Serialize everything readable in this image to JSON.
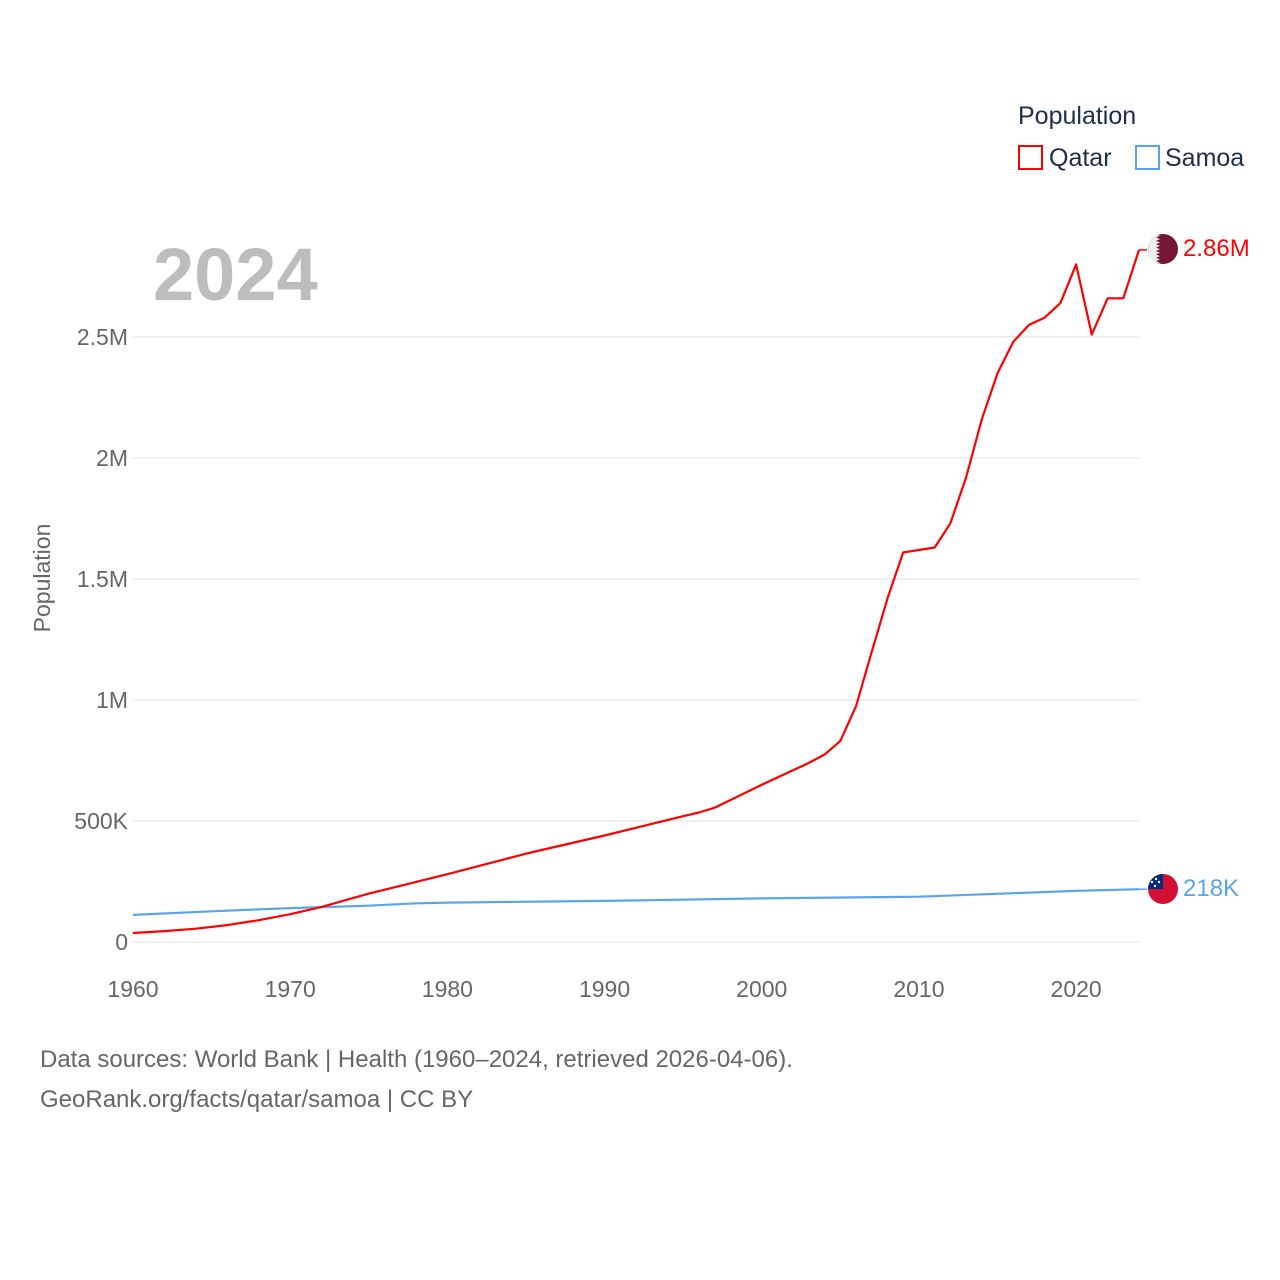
{
  "chart_data": {
    "type": "line",
    "year_label": "2024",
    "ylabel": "Population",
    "xlim": [
      1960,
      2024
    ],
    "ylim": [
      0,
      2900000
    ],
    "x_ticks": [
      1960,
      1970,
      1980,
      1990,
      2000,
      2010,
      2020
    ],
    "x_tick_labels": [
      "1960",
      "1970",
      "1980",
      "1990",
      "2000",
      "2010",
      "2020"
    ],
    "y_ticks": [
      0,
      500000,
      1000000,
      1500000,
      2000000,
      2500000
    ],
    "y_tick_labels": [
      "0",
      "500K",
      "1M",
      "1.5M",
      "2M",
      "2.5M"
    ],
    "grid": true,
    "legend": {
      "title": "Population",
      "placement": "top-right",
      "entries": [
        "Qatar",
        "Samoa"
      ]
    },
    "series": [
      {
        "name": "Qatar",
        "color": "#ff0000",
        "end_label": "2.86M",
        "flag": "qatar-flag",
        "x": [
          1960,
          1962,
          1964,
          1966,
          1968,
          1970,
          1972,
          1975,
          1980,
          1985,
          1986,
          1990,
          1995,
          1996,
          1997,
          2000,
          2003,
          2004,
          2005,
          2006,
          2007,
          2008,
          2009,
          2010,
          2011,
          2012,
          2013,
          2014,
          2015,
          2016,
          2017,
          2018,
          2019,
          2020,
          2021,
          2022,
          2023,
          2024
        ],
        "y": [
          37000,
          45000,
          55000,
          70000,
          90000,
          115000,
          145000,
          200000,
          280000,
          365000,
          380000,
          440000,
          520000,
          535000,
          555000,
          650000,
          740000,
          775000,
          830000,
          975000,
          1200000,
          1420000,
          1610000,
          1620000,
          1630000,
          1730000,
          1920000,
          2160000,
          2350000,
          2480000,
          2550000,
          2580000,
          2640000,
          2800000,
          2510000,
          2660000,
          2660000,
          2860000
        ]
      },
      {
        "name": "Samoa",
        "color": "#5aa5ea",
        "end_label": "218K",
        "flag": "samoa-flag",
        "x": [
          1960,
          1965,
          1970,
          1975,
          1978,
          1980,
          1990,
          2000,
          2010,
          2020,
          2024
        ],
        "y": [
          112000,
          127000,
          140000,
          150000,
          160000,
          163000,
          170000,
          180000,
          187000,
          211000,
          218000
        ]
      }
    ]
  },
  "footer": {
    "line1": "Data sources: World Bank | Health (1960–2024, retrieved 2026-04-06).",
    "line2": "GeoRank.org/facts/qatar/samoa | CC BY"
  }
}
